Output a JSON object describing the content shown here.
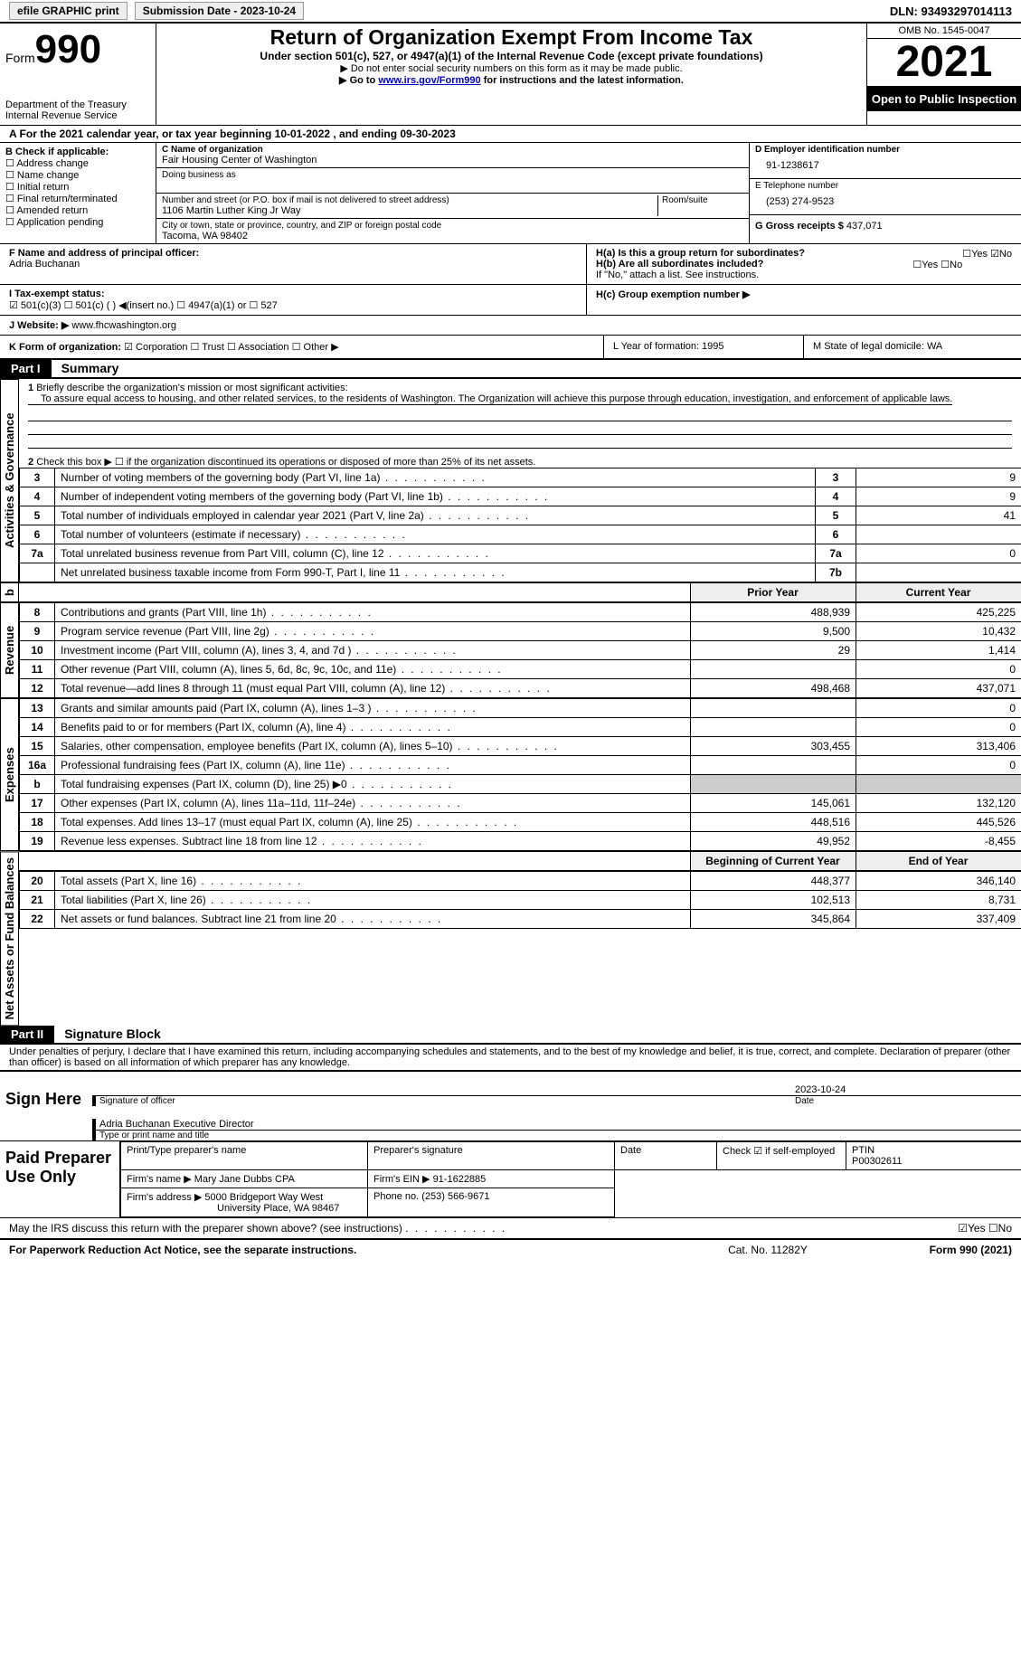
{
  "topbar": {
    "efile": "efile GRAPHIC print",
    "sub_date_label": "Submission Date - 2023-10-24",
    "dln": "DLN: 93493297014113"
  },
  "header": {
    "form_prefix": "Form",
    "form_no": "990",
    "dept": "Department of the Treasury",
    "irs": "Internal Revenue Service",
    "title": "Return of Organization Exempt From Income Tax",
    "sub": "Under section 501(c), 527, or 4947(a)(1) of the Internal Revenue Code (except private foundations)",
    "note1": "▶ Do not enter social security numbers on this form as it may be made public.",
    "note2_pre": "▶ Go to ",
    "note2_link": "www.irs.gov/Form990",
    "note2_post": " for instructions and the latest information.",
    "omb": "OMB No. 1545-0047",
    "year": "2021",
    "inspect": "Open to Public Inspection"
  },
  "lineA": "A For the 2021 calendar year, or tax year beginning 10-01-2022   , and ending 09-30-2023",
  "boxB": {
    "title": "B Check if applicable:",
    "items": [
      "Address change",
      "Name change",
      "Initial return",
      "Final return/terminated",
      "Amended return",
      "Application pending"
    ]
  },
  "boxC": {
    "label_name": "C Name of organization",
    "org": "Fair Housing Center of Washington",
    "dba_label": "Doing business as",
    "addr_label": "Number and street (or P.O. box if mail is not delivered to street address)",
    "room_label": "Room/suite",
    "addr": "1106 Martin Luther King Jr Way",
    "city_label": "City or town, state or province, country, and ZIP or foreign postal code",
    "city": "Tacoma, WA  98402"
  },
  "boxD": {
    "label": "D Employer identification number",
    "val": "91-1238617",
    "phone_label": "E Telephone number",
    "phone": "(253) 274-9523",
    "gross_label": "G Gross receipts $",
    "gross": "437,071"
  },
  "rowF": {
    "label": "F  Name and address of principal officer:",
    "name": "Adria Buchanan"
  },
  "rowH": {
    "ha": "H(a)  Is this a group return for subordinates?",
    "ha_ans": "☐Yes ☑No",
    "hb": "H(b)  Are all subordinates included?",
    "hb_ans": "☐Yes ☐No",
    "hb_note": "If \"No,\" attach a list. See instructions.",
    "hc": "H(c)  Group exemption number ▶"
  },
  "rowI": {
    "label": "I   Tax-exempt status:",
    "opts": "☑ 501(c)(3)    ☐ 501(c) ( ) ◀(insert no.)    ☐ 4947(a)(1) or   ☐ 527"
  },
  "rowJ": {
    "label": "J   Website: ▶",
    "val": "www.fhcwashington.org"
  },
  "rowK": {
    "label": "K Form of organization:",
    "opts": "☑ Corporation  ☐ Trust  ☐ Association  ☐ Other ▶",
    "L": "L Year of formation: 1995",
    "M": "M State of legal domicile: WA"
  },
  "part1": {
    "hdr": "Part I",
    "title": "Summary",
    "q1a": "Briefly describe the organization's mission or most significant activities:",
    "q1b": "To assure equal access to housing, and other related services, to the residents of Washington. The Organization will achieve this purpose through education, investigation, and enforcement of applicable laws.",
    "q2": "Check this box ▶ ☐ if the organization discontinued its operations or disposed of more than 25% of its net assets.",
    "side_ag": "Activities & Governance",
    "side_rev": "Revenue",
    "side_exp": "Expenses",
    "side_na": "Net Assets or Fund Balances",
    "rows_ag": [
      {
        "n": "3",
        "t": "Number of voting members of the governing body (Part VI, line 1a)",
        "ln": "3",
        "v": "9"
      },
      {
        "n": "4",
        "t": "Number of independent voting members of the governing body (Part VI, line 1b)",
        "ln": "4",
        "v": "9"
      },
      {
        "n": "5",
        "t": "Total number of individuals employed in calendar year 2021 (Part V, line 2a)",
        "ln": "5",
        "v": "41"
      },
      {
        "n": "6",
        "t": "Total number of volunteers (estimate if necessary)",
        "ln": "6",
        "v": ""
      },
      {
        "n": "7a",
        "t": "Total unrelated business revenue from Part VIII, column (C), line 12",
        "ln": "7a",
        "v": "0"
      },
      {
        "n": "",
        "t": "Net unrelated business taxable income from Form 990-T, Part I, line 11",
        "ln": "7b",
        "v": ""
      }
    ],
    "hdr_prior": "Prior Year",
    "hdr_curr": "Current Year",
    "rows_rev": [
      {
        "n": "8",
        "t": "Contributions and grants (Part VIII, line 1h)",
        "p": "488,939",
        "c": "425,225"
      },
      {
        "n": "9",
        "t": "Program service revenue (Part VIII, line 2g)",
        "p": "9,500",
        "c": "10,432"
      },
      {
        "n": "10",
        "t": "Investment income (Part VIII, column (A), lines 3, 4, and 7d )",
        "p": "29",
        "c": "1,414"
      },
      {
        "n": "11",
        "t": "Other revenue (Part VIII, column (A), lines 5, 6d, 8c, 9c, 10c, and 11e)",
        "p": "",
        "c": "0"
      },
      {
        "n": "12",
        "t": "Total revenue—add lines 8 through 11 (must equal Part VIII, column (A), line 12)",
        "p": "498,468",
        "c": "437,071"
      }
    ],
    "rows_exp": [
      {
        "n": "13",
        "t": "Grants and similar amounts paid (Part IX, column (A), lines 1–3 )",
        "p": "",
        "c": "0"
      },
      {
        "n": "14",
        "t": "Benefits paid to or for members (Part IX, column (A), line 4)",
        "p": "",
        "c": "0"
      },
      {
        "n": "15",
        "t": "Salaries, other compensation, employee benefits (Part IX, column (A), lines 5–10)",
        "p": "303,455",
        "c": "313,406"
      },
      {
        "n": "16a",
        "t": "Professional fundraising fees (Part IX, column (A), line 11e)",
        "p": "",
        "c": "0"
      },
      {
        "n": "b",
        "t": "Total fundraising expenses (Part IX, column (D), line 25) ▶0",
        "p": "GREY",
        "c": "GREY"
      },
      {
        "n": "17",
        "t": "Other expenses (Part IX, column (A), lines 11a–11d, 11f–24e)",
        "p": "145,061",
        "c": "132,120"
      },
      {
        "n": "18",
        "t": "Total expenses. Add lines 13–17 (must equal Part IX, column (A), line 25)",
        "p": "448,516",
        "c": "445,526"
      },
      {
        "n": "19",
        "t": "Revenue less expenses. Subtract line 18 from line 12",
        "p": "49,952",
        "c": "-8,455"
      }
    ],
    "hdr_beg": "Beginning of Current Year",
    "hdr_end": "End of Year",
    "rows_na": [
      {
        "n": "20",
        "t": "Total assets (Part X, line 16)",
        "p": "448,377",
        "c": "346,140"
      },
      {
        "n": "21",
        "t": "Total liabilities (Part X, line 26)",
        "p": "102,513",
        "c": "8,731"
      },
      {
        "n": "22",
        "t": "Net assets or fund balances. Subtract line 21 from line 20",
        "p": "345,864",
        "c": "337,409"
      }
    ]
  },
  "part2": {
    "hdr": "Part II",
    "title": "Signature Block",
    "decl": "Under penalties of perjury, I declare that I have examined this return, including accompanying schedules and statements, and to the best of my knowledge and belief, it is true, correct, and complete. Declaration of preparer (other than officer) is based on all information of which preparer has any knowledge.",
    "sign_here": "Sign Here",
    "sig_officer": "Signature of officer",
    "sig_date": "2023-10-24",
    "name_title": "Adria Buchanan  Executive Director",
    "type_name": "Type or print name and title",
    "paid": "Paid Preparer Use Only",
    "pt_name_lbl": "Print/Type preparer's name",
    "pt_sig_lbl": "Preparer's signature",
    "pt_date_lbl": "Date",
    "pt_check": "Check ☑ if self-employed",
    "ptin_lbl": "PTIN",
    "ptin": "P00302611",
    "firm_name_lbl": "Firm's name    ▶",
    "firm_name": "Mary Jane Dubbs CPA",
    "firm_ein_lbl": "Firm's EIN ▶",
    "firm_ein": "91-1622885",
    "firm_addr_lbl": "Firm's address ▶",
    "firm_addr": "5000 Bridgeport Way West",
    "firm_city": "University Place, WA  98467",
    "firm_phone_lbl": "Phone no.",
    "firm_phone": "(253) 566-9671",
    "may_irs": "May the IRS discuss this return with the preparer shown above? (see instructions)",
    "may_ans": "☑Yes  ☐No"
  },
  "footer": {
    "pra": "For Paperwork Reduction Act Notice, see the separate instructions.",
    "cat": "Cat. No. 11282Y",
    "form": "Form 990 (2021)"
  }
}
